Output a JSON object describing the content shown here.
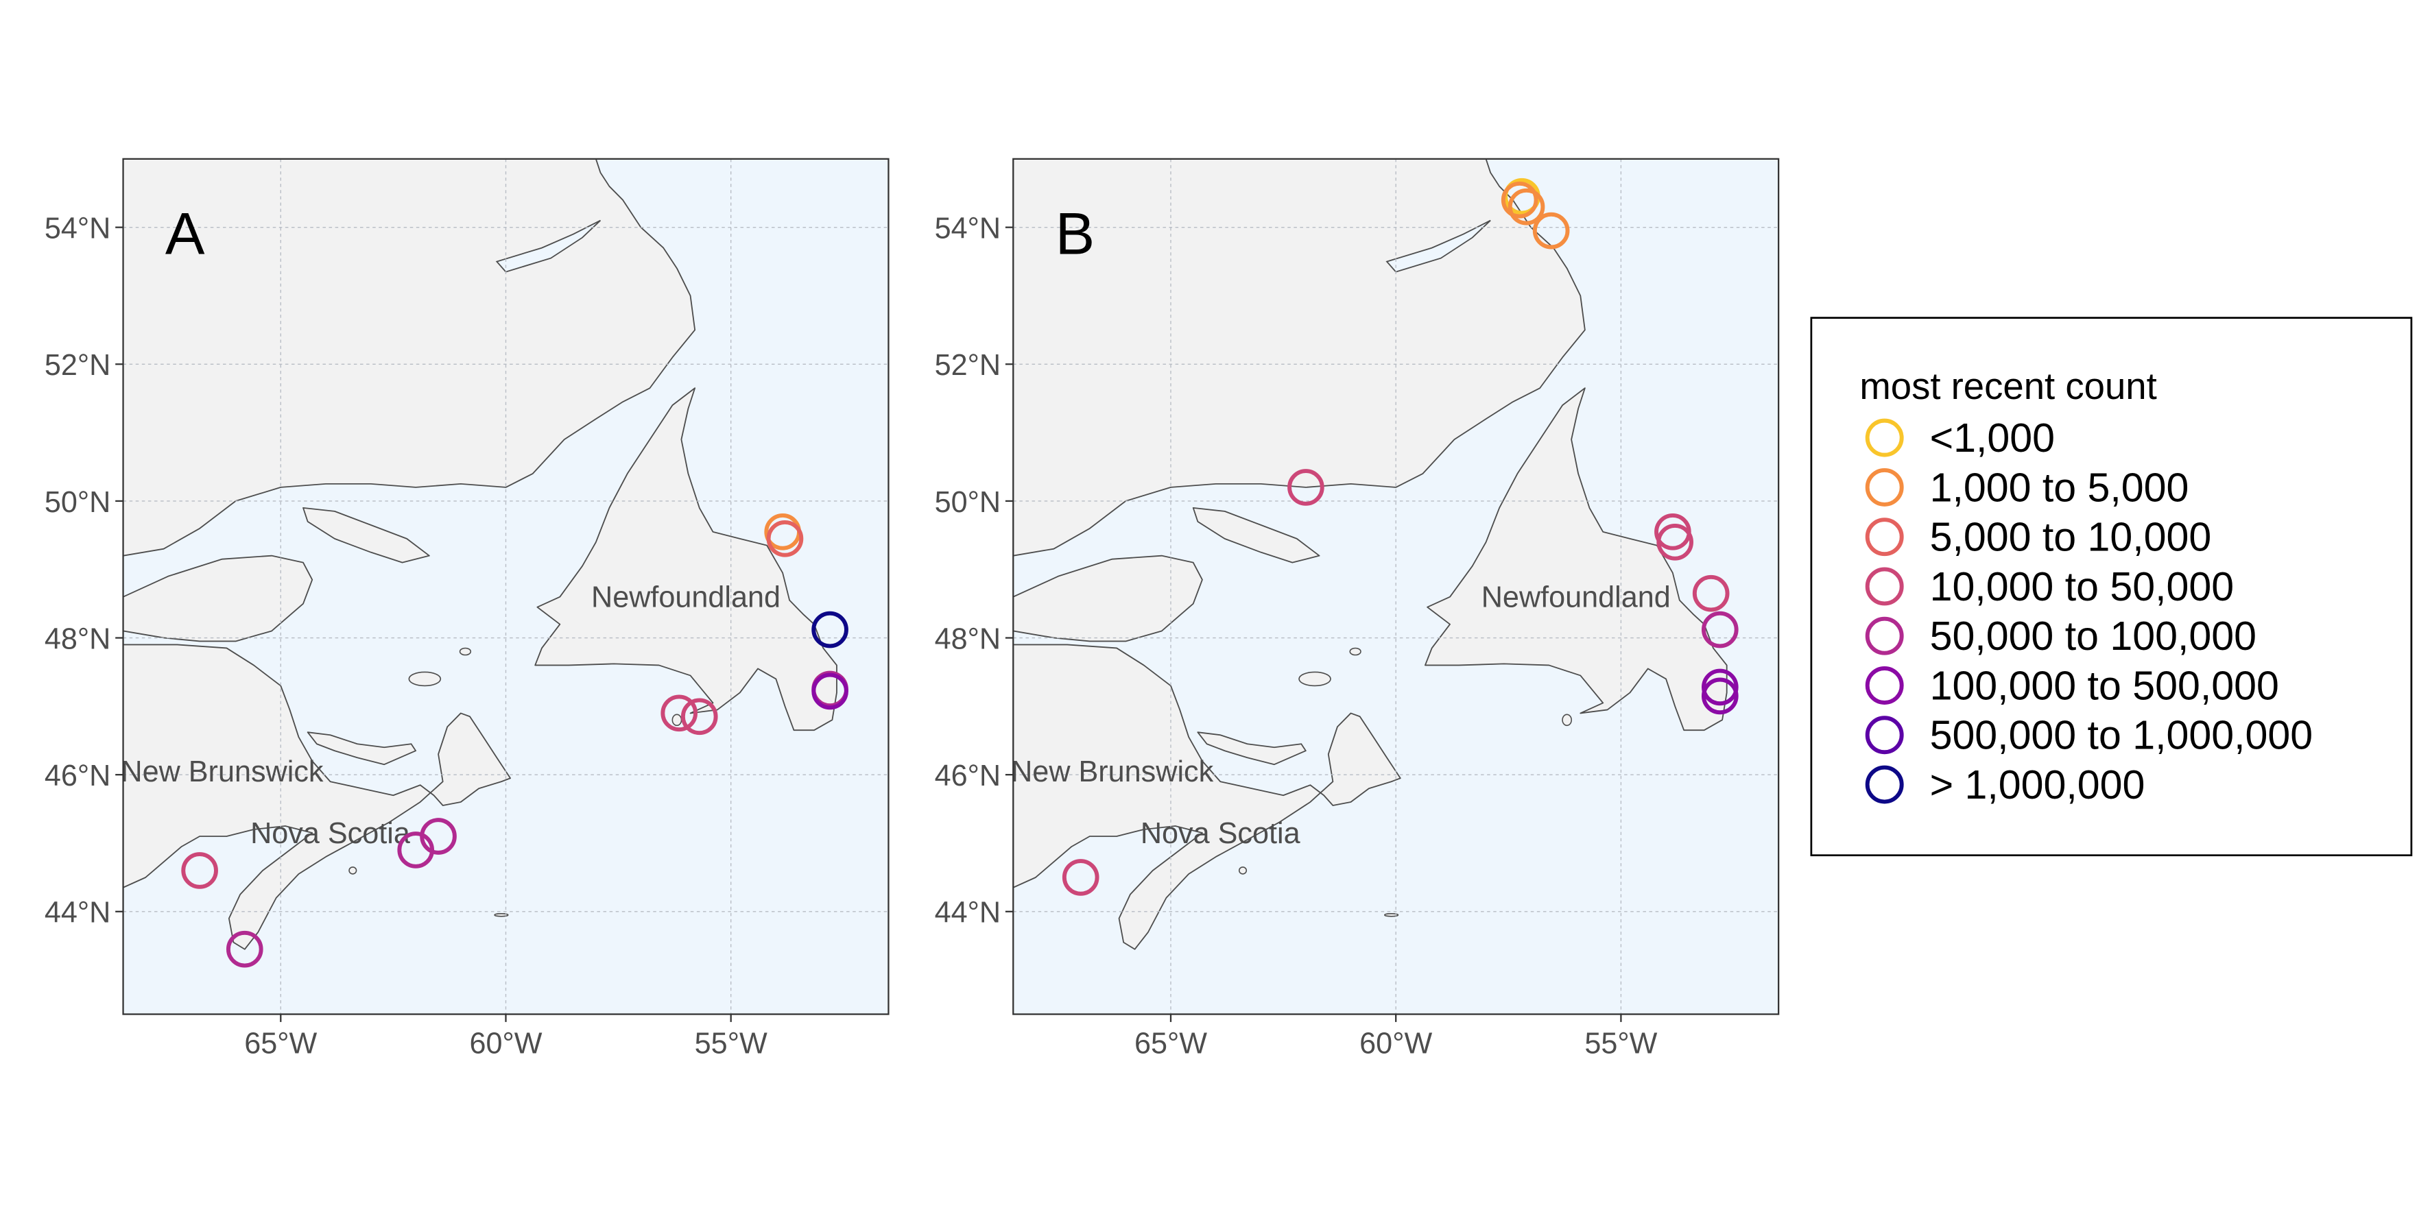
{
  "map": {
    "lon_range": [
      -68.5,
      -51.5
    ],
    "lat_range": [
      42.5,
      55.0
    ],
    "land_color": "#f2f2f2",
    "water_color": "#eef6fd",
    "coast_color": "#4d4d4d",
    "grid_color": "#b7bcc4",
    "lon_ticks": [
      {
        "lon": -65,
        "label": "65°W"
      },
      {
        "lon": -60,
        "label": "60°W"
      },
      {
        "lon": -55,
        "label": "55°W"
      }
    ],
    "lat_ticks": [
      {
        "lat": 54,
        "label": "54°N"
      },
      {
        "lat": 52,
        "label": "52°N"
      },
      {
        "lat": 50,
        "label": "50°N"
      },
      {
        "lat": 48,
        "label": "48°N"
      },
      {
        "lat": 46,
        "label": "46°N"
      },
      {
        "lat": 44,
        "label": "44°N"
      }
    ],
    "place_labels": [
      {
        "text": "Newfoundland",
        "lon": -56.0,
        "lat": 48.45
      },
      {
        "text": "New Brunswick",
        "lon": -66.3,
        "lat": 45.9
      },
      {
        "text": "Nova Scotia",
        "lon": -63.9,
        "lat": 45.0
      }
    ]
  },
  "panels": [
    {
      "letter": "A",
      "colonies": [
        {
          "lon": -53.85,
          "lat": 49.55,
          "category": 1
        },
        {
          "lon": -53.8,
          "lat": 49.45,
          "category": 2
        },
        {
          "lon": -52.8,
          "lat": 48.12,
          "category": 7
        },
        {
          "lon": -52.8,
          "lat": 47.25,
          "category": 4
        },
        {
          "lon": -52.8,
          "lat": 47.22,
          "category": 5
        },
        {
          "lon": -56.15,
          "lat": 46.9,
          "category": 3
        },
        {
          "lon": -55.7,
          "lat": 46.85,
          "category": 3
        },
        {
          "lon": -66.8,
          "lat": 44.6,
          "category": 3
        },
        {
          "lon": -62.0,
          "lat": 44.9,
          "category": 4
        },
        {
          "lon": -61.5,
          "lat": 45.1,
          "category": 4
        },
        {
          "lon": -65.8,
          "lat": 43.45,
          "category": 4
        }
      ]
    },
    {
      "letter": "B",
      "colonies": [
        {
          "lon": -57.2,
          "lat": 54.45,
          "category": 0
        },
        {
          "lon": -57.1,
          "lat": 54.3,
          "category": 1
        },
        {
          "lon": -57.25,
          "lat": 54.4,
          "category": 1
        },
        {
          "lon": -56.55,
          "lat": 53.95,
          "category": 1
        },
        {
          "lon": -62.0,
          "lat": 50.2,
          "category": 3
        },
        {
          "lon": -53.85,
          "lat": 49.55,
          "category": 3
        },
        {
          "lon": -53.8,
          "lat": 49.4,
          "category": 3
        },
        {
          "lon": -53.0,
          "lat": 48.65,
          "category": 3
        },
        {
          "lon": -52.8,
          "lat": 48.12,
          "category": 4
        },
        {
          "lon": -52.8,
          "lat": 47.28,
          "category": 5
        },
        {
          "lon": -52.8,
          "lat": 47.15,
          "category": 5
        },
        {
          "lon": -67.0,
          "lat": 44.5,
          "category": 3
        }
      ]
    }
  ],
  "legend": {
    "title": "most recent count",
    "items": [
      {
        "label": "<1,000",
        "color": "#f9c52b"
      },
      {
        "label": "1,000 to 5,000",
        "color": "#f58d40"
      },
      {
        "label": "5,000 to 10,000",
        "color": "#e4625f"
      },
      {
        "label": "10,000 to 50,000",
        "color": "#cc4778"
      },
      {
        "label": "50,000 to 100,000",
        "color": "#b12a90"
      },
      {
        "label": "100,000 to 500,000",
        "color": "#8b0aa5"
      },
      {
        "label": "500,000 to 1,000,000",
        "color": "#5c01a6"
      },
      {
        "label": "> 1,000,000",
        "color": "#0d0887"
      }
    ]
  }
}
